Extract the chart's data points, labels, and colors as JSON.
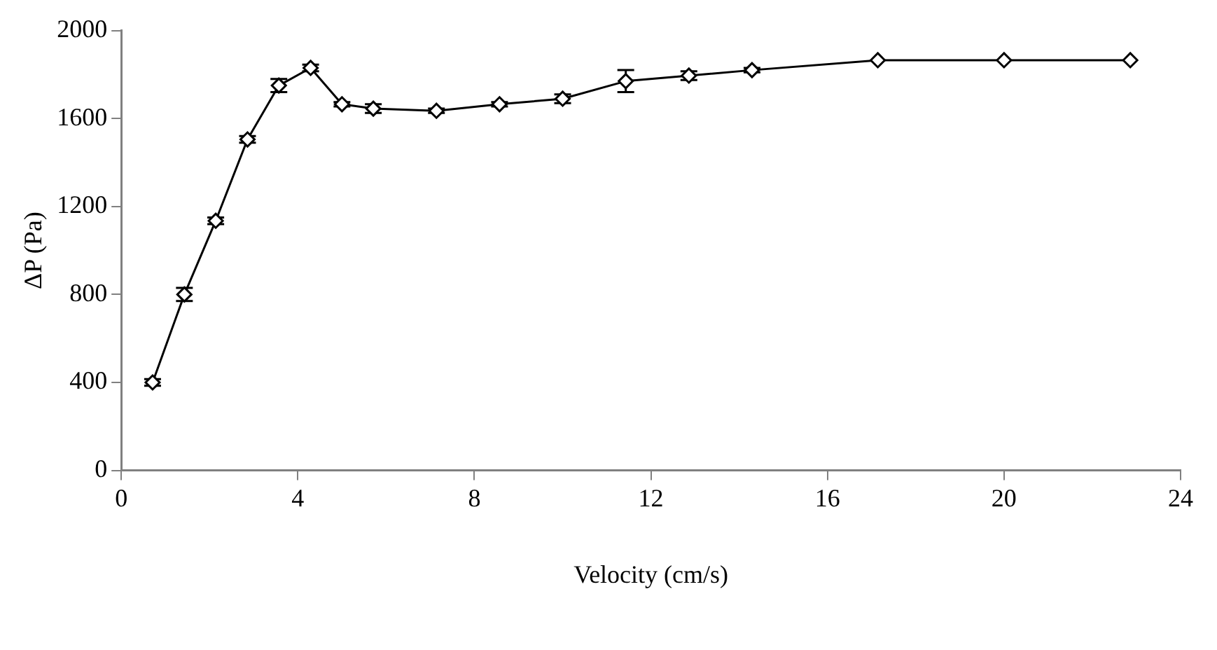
{
  "chart_data": {
    "type": "line",
    "xlabel": "Velocity (cm/s)",
    "ylabel": "ΔP (Pa)",
    "x": [
      0.71,
      1.43,
      2.14,
      2.86,
      3.57,
      4.29,
      5.0,
      5.71,
      7.14,
      8.57,
      10.0,
      11.43,
      12.86,
      14.29,
      17.14,
      20.0,
      22.86
    ],
    "series": [
      {
        "color": "#000000",
        "values": [
          400,
          800,
          1135,
          1505,
          1750,
          1830,
          1665,
          1645,
          1635,
          1665,
          1690,
          1770,
          1795,
          1820,
          1865,
          1865,
          1865
        ],
        "errors": [
          15,
          30,
          15,
          15,
          30,
          15,
          10,
          20,
          10,
          10,
          20,
          50,
          20,
          10,
          null,
          null,
          null
        ]
      }
    ],
    "xlim": [
      0,
      24
    ],
    "xticks": [
      0,
      4,
      8,
      12,
      16,
      20,
      24
    ],
    "ylim": [
      0,
      2000
    ],
    "yticks": [
      0,
      400,
      800,
      1200,
      1600,
      2000
    ],
    "grid": false,
    "legend": false,
    "marker": "diamond",
    "line_style": "solid"
  }
}
